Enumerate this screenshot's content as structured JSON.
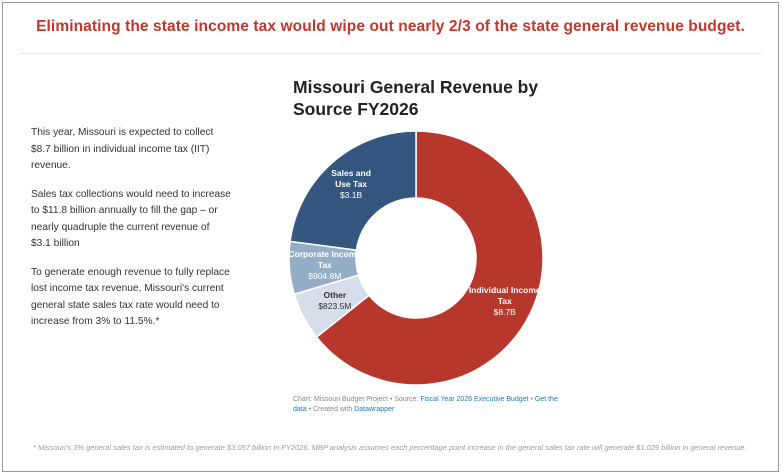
{
  "headline": "Eliminating the state income tax would wipe out nearly 2/3 of the state general revenue budget.",
  "sidebar": {
    "paragraphs": [
      "This year, Missouri is expected to collect $8.7 billion in individual income tax (IIT) revenue.",
      "Sales tax collections would need to increase to $11.8 billion annually to fill the gap – or nearly quadruple the current revenue of $3.1 billion",
      "To generate enough revenue to fully replace lost income tax revenue, Missouri's current general state sales tax rate would need to increase from 3% to 11.5%.*"
    ]
  },
  "chart_data": {
    "type": "pie",
    "title": "Missouri General Revenue by Source FY2026",
    "donut": true,
    "slices": [
      {
        "name": "Individual Income Tax",
        "value": 8.7,
        "label_value": "$8.7B",
        "color": "#b8372c"
      },
      {
        "name": "Other",
        "value": 0.8235,
        "label_value": "$823.5M",
        "color": "#d6dfe9"
      },
      {
        "name": "Corporate Income Tax",
        "value": 0.9048,
        "label_value": "$904.8M",
        "color": "#95aec8"
      },
      {
        "name": "Sales and Use Tax",
        "value": 3.1,
        "label_value": "$3.1B",
        "color": "#35567e"
      }
    ]
  },
  "credits": {
    "prefix": "Chart: Missouri Budget Project • Source: ",
    "source_link": "Fiscal Year 2026 Executive Budget",
    "sep": " • ",
    "data_link": "Get the data",
    "created": " • Created with ",
    "tool_link": "Datawrapper"
  },
  "footnote": "* Missouri's 3% general sales tax is estimated to generate $3.057 billion in FY2026. MBP analysis assumes each percentage point increase in the general sales tax rate will generate $1.029 billion in general revenue."
}
